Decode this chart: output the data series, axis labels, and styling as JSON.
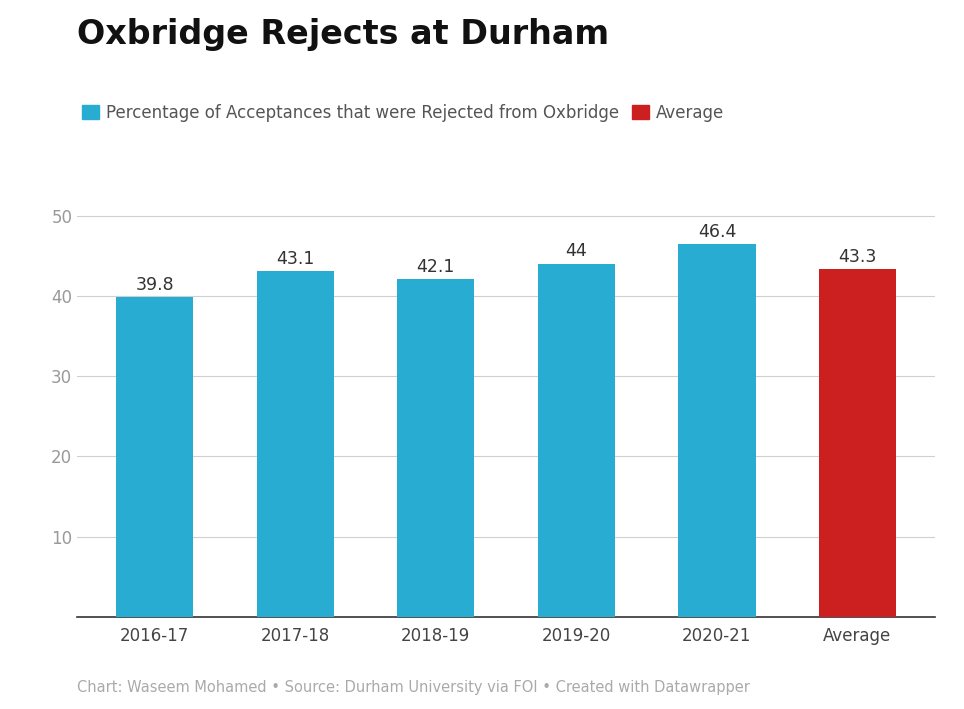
{
  "title": "Oxbridge Rejects at Durham",
  "categories": [
    "2016-17",
    "2017-18",
    "2018-19",
    "2019-20",
    "2020-21",
    "Average"
  ],
  "values": [
    39.8,
    43.1,
    42.1,
    44,
    46.4,
    43.3
  ],
  "value_labels": [
    "39.8",
    "43.1",
    "42.1",
    "44",
    "46.4",
    "43.3"
  ],
  "bar_colors": [
    "#29acd1",
    "#29acd1",
    "#29acd1",
    "#29acd1",
    "#29acd1",
    "#cc2020"
  ],
  "blue_color": "#29acd1",
  "red_color": "#cc2020",
  "legend_blue_label": "Percentage of Acceptances that were Rejected from Oxbridge",
  "legend_red_label": "Average",
  "ylim": [
    0,
    53
  ],
  "yticks": [
    10,
    20,
    30,
    40,
    50
  ],
  "caption": "Chart: Waseem Mohamed • Source: Durham University via FOI • Created with Datawrapper",
  "caption_color": "#aaaaaa",
  "title_fontsize": 24,
  "legend_fontsize": 12,
  "tick_fontsize": 12,
  "caption_fontsize": 10.5,
  "bar_label_fontsize": 12.5,
  "background_color": "#ffffff",
  "grid_color": "#d0d0d0",
  "bar_width": 0.55
}
